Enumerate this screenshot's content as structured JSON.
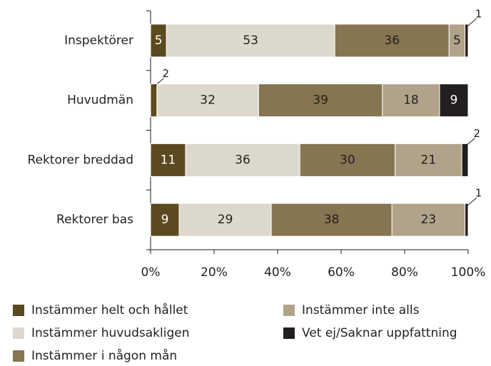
{
  "chart_data": {
    "type": "stacked_bar_horizontal",
    "categories": [
      "Inspektörer",
      "Huvudmän",
      "Rektorer breddad",
      "Rektorer bas"
    ],
    "series": [
      {
        "name": "Instämmer helt och hållet",
        "color": "#5b4a1f",
        "values": [
          5,
          2,
          11,
          9
        ]
      },
      {
        "name": "Instämmer huvudsakligen",
        "color": "#ddd8cc",
        "values": [
          53,
          32,
          36,
          29
        ]
      },
      {
        "name": "Instämmer i någon mån",
        "color": "#857550",
        "values": [
          36,
          39,
          30,
          38
        ]
      },
      {
        "name": "Instämmer inte alls",
        "color": "#b0a38a",
        "values": [
          5,
          18,
          21,
          23
        ]
      },
      {
        "name": "Vet ej/Saknar uppfattning",
        "color": "#231f20",
        "values": [
          1,
          9,
          2,
          1
        ]
      }
    ],
    "xlim": [
      0,
      100
    ],
    "xticks": [
      {
        "value": 0,
        "label": "0%"
      },
      {
        "value": 20,
        "label": "20%"
      },
      {
        "value": 40,
        "label": "40%"
      },
      {
        "value": 60,
        "label": "60%"
      },
      {
        "value": 80,
        "label": "80%"
      },
      {
        "value": 100,
        "label": "100%"
      }
    ],
    "legend": "bottom"
  }
}
